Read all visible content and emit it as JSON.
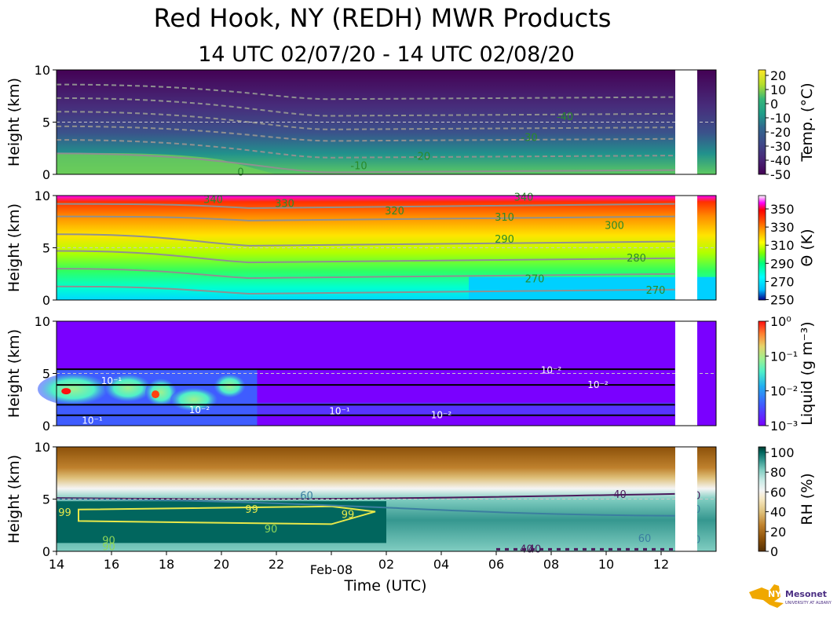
{
  "header": {
    "title": "Red Hook, NY (REDH) MWR Products",
    "subtitle": "14 UTC 02/07/20 - 14 UTC 02/08/20"
  },
  "x_axis": {
    "label": "Time (UTC)",
    "ticks": [
      "14",
      "16",
      "18",
      "20",
      "22",
      "Feb-08",
      "02",
      "04",
      "06",
      "08",
      "10",
      "12"
    ]
  },
  "logo": {
    "text": "NYS Mesonet",
    "subtext": "UNIVERSITY AT ALBANY"
  },
  "chart_data": [
    {
      "type": "heatmap",
      "variable": "temperature",
      "ylabel": "Height (km)",
      "yticks": [
        "0",
        "5",
        "10"
      ],
      "ylim": [
        0,
        10
      ],
      "colorbar": {
        "label": "Temp. (°C)",
        "range": [
          -50,
          20
        ],
        "ticks": [
          "20",
          "10",
          "0",
          "-10",
          "-20",
          "-30",
          "-40",
          "-50"
        ]
      },
      "contour_labels": [
        "0",
        "-10",
        "-20",
        "-30",
        "-40"
      ],
      "data_gap": "approx. 12:20-13:10 UTC"
    },
    {
      "type": "heatmap",
      "variable": "potential_temperature",
      "ylabel": "Height (km)",
      "yticks": [
        "0",
        "5",
        "10"
      ],
      "ylim": [
        0,
        10
      ],
      "colorbar": {
        "label": "Θ (K)",
        "range": [
          250,
          360
        ],
        "ticks": [
          "350",
          "330",
          "310",
          "290",
          "270",
          "250"
        ]
      },
      "contour_labels": [
        "340",
        "330",
        "320",
        "310",
        "300",
        "290",
        "280",
        "270",
        "270",
        "340"
      ]
    },
    {
      "type": "heatmap",
      "variable": "liquid_water",
      "ylabel": "Height (km)",
      "yticks": [
        "0",
        "5",
        "10"
      ],
      "ylim": [
        0,
        10
      ],
      "colorbar": {
        "label": "Liquid (g m⁻³)",
        "scale": "log",
        "ticks": [
          "10⁰",
          "10⁻¹",
          "10⁻²",
          "10⁻³"
        ]
      },
      "contour_labels": [
        "10⁻¹",
        "10⁻¹",
        "10⁻²",
        "10⁻¹",
        "10⁻²",
        "10⁻²",
        "10⁻²"
      ]
    },
    {
      "type": "heatmap",
      "variable": "relative_humidity",
      "ylabel": "Height (km)",
      "yticks": [
        "0",
        "5",
        "10"
      ],
      "ylim": [
        0,
        10
      ],
      "colorbar": {
        "label": "RH (%)",
        "range": [
          0,
          105
        ],
        "ticks": [
          "100",
          "80",
          "60",
          "40",
          "20",
          "0"
        ]
      },
      "contour_labels": [
        "99",
        "99",
        "99",
        "90",
        "90",
        "90",
        "60",
        "40",
        "40",
        "60",
        "60",
        "40",
        "40",
        "60"
      ]
    }
  ],
  "colors": {
    "temp_colormap": [
      "#440154",
      "#482878",
      "#3e4a89",
      "#31688e",
      "#26828e",
      "#1f9e89",
      "#35b779",
      "#6ece58",
      "#b5de2b",
      "#fde725"
    ],
    "theta_colormap": [
      "#00008b",
      "#00bfff",
      "#00ffff",
      "#00ff7f",
      "#7fff00",
      "#ffff00",
      "#ffa500",
      "#ff4500",
      "#ff0000",
      "#ff00ff",
      "#ffffff"
    ],
    "liquid_colormap": [
      "#7a00ff",
      "#3f5cff",
      "#22b0f0",
      "#4ff0c8",
      "#9ff08f",
      "#e6d36a",
      "#ff8030",
      "#ff1010"
    ],
    "rh_colormap": [
      "#543005",
      "#8c510a",
      "#bf812d",
      "#dfc27d",
      "#f6e8c3",
      "#f5f5f5",
      "#c7eae5",
      "#80cdc1",
      "#35978f",
      "#01665e",
      "#003c30"
    ]
  }
}
